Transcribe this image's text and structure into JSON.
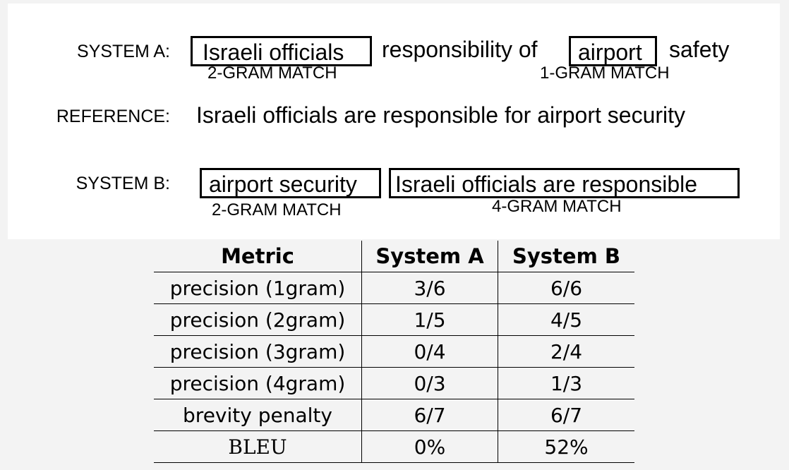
{
  "diagram": {
    "system_a": {
      "label": "SYSTEM A:",
      "box1": "Israeli officials",
      "text1": "responsibility of",
      "box2": "airport",
      "text2": "safety",
      "match1": "2-GRAM MATCH",
      "match2": "1-GRAM MATCH"
    },
    "reference": {
      "label": "REFERENCE:",
      "text": "Israeli officials are responsible for airport security"
    },
    "system_b": {
      "label": "SYSTEM B:",
      "box1": "airport security",
      "box2": "Israeli officials are responsible",
      "match1": "2-GRAM MATCH",
      "match2": "4-GRAM MATCH"
    }
  },
  "table": {
    "headers": [
      "Metric",
      "System A",
      "System B"
    ],
    "rows": [
      [
        "precision (1gram)",
        "3/6",
        "6/6"
      ],
      [
        "precision (2gram)",
        "1/5",
        "4/5"
      ],
      [
        "precision (3gram)",
        "0/4",
        "2/4"
      ],
      [
        "precision (4gram)",
        "0/3",
        "1/3"
      ],
      [
        "brevity penalty",
        "6/7",
        "6/7"
      ],
      [
        "BLEU",
        "0%",
        "52%"
      ]
    ]
  }
}
